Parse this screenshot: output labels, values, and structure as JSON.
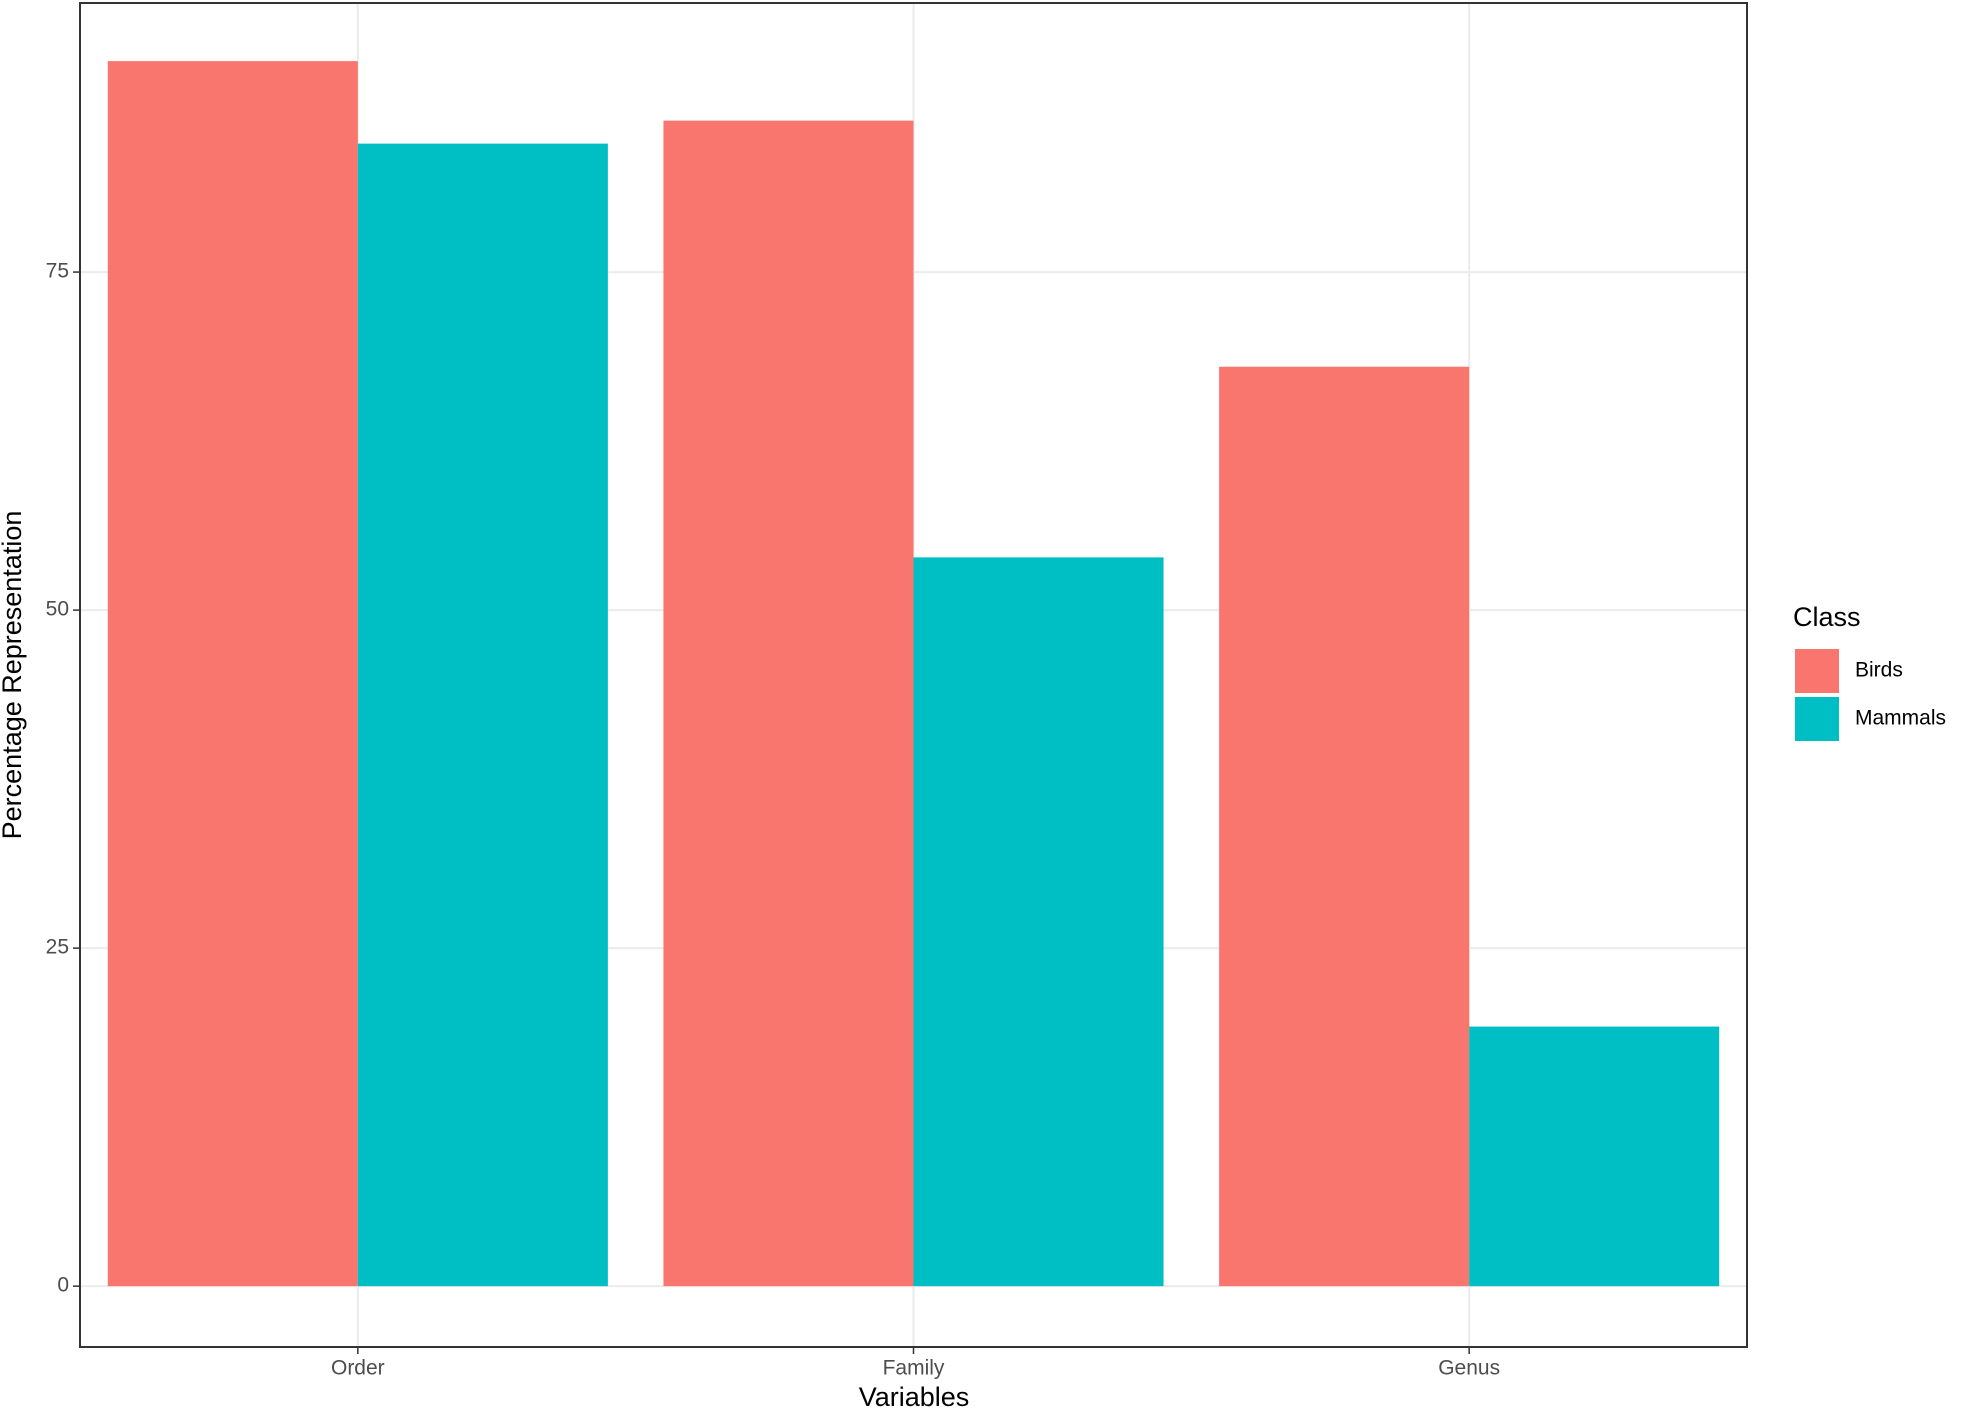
{
  "chart_data": {
    "type": "bar",
    "x_label": "Variables",
    "y_label": "Percentage Representation",
    "categories": [
      "Order",
      "Family",
      "Genus"
    ],
    "legend_title": "Class",
    "series": [
      {
        "name": "Birds",
        "color": "#f8766d",
        "values": [
          90.6,
          86.2,
          68.0
        ]
      },
      {
        "name": "Mammals",
        "color": "#00bfc4",
        "values": [
          84.5,
          53.9,
          19.2
        ]
      }
    ],
    "ylim": [
      -4.5,
      94.9
    ],
    "yticks": [
      0,
      25,
      50,
      75
    ],
    "grid": true,
    "legend": "right"
  }
}
